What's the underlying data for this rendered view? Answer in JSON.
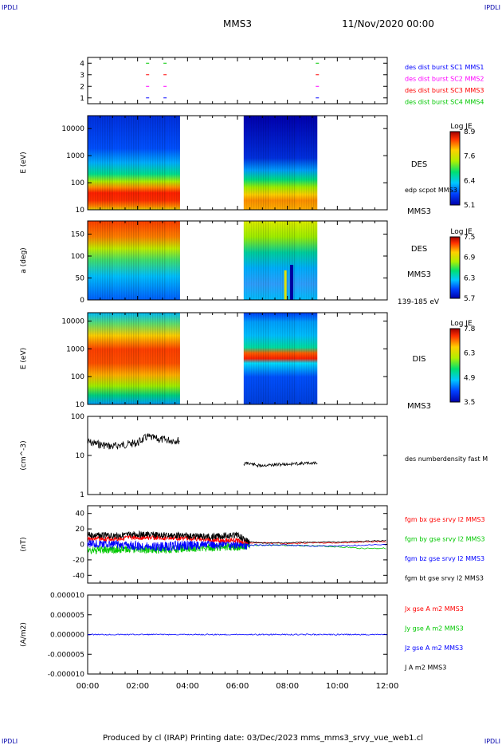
{
  "header": {
    "corner_tl": "IPDLI",
    "corner_tr": "IPDLI",
    "corner_bl": "IPDLI",
    "corner_br": "IPDLI",
    "spacecraft": "MMS3",
    "datetime": "11/Nov/2020 00:00"
  },
  "footer": {
    "text": "Produced by cl (IRAP)   Printing date: 03/Dec/2023   mms_mms3_srvy_vue_web1.cl"
  },
  "colors": {
    "black": "#000000",
    "red": "#ff0000",
    "green": "#00c800",
    "blue": "#0000ff",
    "magenta": "#ff00ff",
    "corner_blue": "#0000aa"
  },
  "chart_data": [
    {
      "type": "scatter",
      "panel": "burst-availability",
      "yticks": [
        "1",
        "2",
        "3",
        "4"
      ],
      "ylim": [
        0.5,
        4.5
      ],
      "legend": [
        {
          "name": "des dist burst SC1 MMS1",
          "color": "#0000ff"
        },
        {
          "name": "des dist burst SC2 MMS2",
          "color": "#ff00ff"
        },
        {
          "name": "des dist burst SC3 MMS3",
          "color": "#ff0000"
        },
        {
          "name": "des dist burst SC4 MMS4",
          "color": "#00c800"
        }
      ],
      "marks_hours": [
        2.4,
        3.1,
        9.2
      ]
    },
    {
      "type": "heatmap",
      "panel": "des-energy",
      "ylabel": "E (eV)",
      "yticks": [
        "10",
        "100",
        "1000",
        "10000"
      ],
      "ylog": true,
      "ylim": [
        10,
        30000
      ],
      "colorbar": {
        "title": "Log JE",
        "ticks": [
          "8.9",
          "7.6",
          "6.4",
          "5.1"
        ],
        "range": [
          5.1,
          8.9
        ]
      },
      "right_labels": [
        "DES",
        "edp scpot MMS3",
        "MMS3"
      ],
      "data_intervals_hours": [
        [
          0.0,
          3.7
        ],
        [
          6.25,
          9.2
        ]
      ]
    },
    {
      "type": "heatmap",
      "panel": "des-pitch-angle",
      "ylabel": "a (deg)",
      "yticks": [
        "0",
        "50",
        "100",
        "150"
      ],
      "ylim": [
        0,
        180
      ],
      "colorbar": {
        "title": "Log JE",
        "ticks": [
          "7.5",
          "6.9",
          "6.3",
          "5.7"
        ],
        "range": [
          5.7,
          7.5
        ]
      },
      "right_labels": [
        "DES",
        "MMS3",
        "139-185 eV"
      ],
      "data_intervals_hours": [
        [
          0.0,
          3.7
        ],
        [
          6.25,
          9.2
        ]
      ]
    },
    {
      "type": "heatmap",
      "panel": "dis-energy",
      "ylabel": "E (eV)",
      "yticks": [
        "10",
        "100",
        "1000",
        "10000"
      ],
      "ylog": true,
      "ylim": [
        10,
        20000
      ],
      "colorbar": {
        "title": "Log JE",
        "ticks": [
          "7.8",
          "6.3",
          "4.9",
          "3.5"
        ],
        "range": [
          3.5,
          7.8
        ]
      },
      "right_labels": [
        "DIS",
        "MMS3"
      ],
      "data_intervals_hours": [
        [
          0.0,
          3.7
        ],
        [
          6.25,
          9.2
        ]
      ]
    },
    {
      "type": "line",
      "panel": "density",
      "ylabel": "(cm^-3)",
      "yticks": [
        "1",
        "10",
        "100"
      ],
      "ylog": true,
      "ylim": [
        1,
        100
      ],
      "series": [
        {
          "name": "des numberdensity fast M",
          "color": "#000000",
          "x": [
            0.0,
            0.5,
            1.0,
            1.5,
            2.0,
            2.4,
            2.8,
            3.2,
            3.7,
            6.25,
            6.4,
            6.8,
            7.5,
            8.5,
            9.2
          ],
          "y": [
            22,
            19,
            17,
            19,
            21,
            30,
            26,
            25,
            24,
            6,
            6.5,
            5.5,
            5.8,
            6.2,
            6.5
          ]
        }
      ]
    },
    {
      "type": "line",
      "panel": "magnetic-field",
      "ylabel": "(nT)",
      "yticks": [
        "-40",
        "-20",
        "0",
        "20",
        "40"
      ],
      "ylim": [
        -50,
        50
      ],
      "series": [
        {
          "name": "fgm bx gse srvy l2 MMS3",
          "color": "#ff0000",
          "x": [
            0,
            1,
            2,
            3,
            4,
            5,
            6,
            6.5,
            7,
            8,
            9,
            10,
            11,
            12
          ],
          "y": [
            8,
            7,
            9,
            8,
            8,
            6,
            5,
            2,
            2,
            1,
            2,
            2,
            3,
            4
          ]
        },
        {
          "name": "fgm by gse srvy l2 MMS3",
          "color": "#00c800",
          "x": [
            0,
            1,
            2,
            3,
            4,
            5,
            6,
            6.5,
            7,
            8,
            9,
            10,
            11,
            12
          ],
          "y": [
            -8,
            -7,
            -6,
            -7,
            -5,
            -4,
            -3,
            -1,
            -1,
            -1,
            -2,
            -3,
            -5,
            -5
          ]
        },
        {
          "name": "fgm bz gse srvy l2 MMS3",
          "color": "#0000ff",
          "x": [
            0,
            1,
            2,
            3,
            4,
            5,
            6,
            6.5,
            7,
            8,
            9,
            10,
            11,
            12
          ],
          "y": [
            2,
            0,
            -2,
            -3,
            -1,
            0,
            0,
            -1,
            -1,
            -1,
            -2,
            -2,
            -1,
            0
          ]
        },
        {
          "name": "fgm bt gse srvy l2 MMS3",
          "color": "#000000",
          "x": [
            0,
            1,
            2,
            3,
            4,
            5,
            6,
            6.5,
            7,
            8,
            9,
            10,
            11,
            12
          ],
          "y": [
            12,
            11,
            13,
            12,
            11,
            10,
            12,
            3,
            2,
            2,
            3,
            3,
            4,
            5
          ]
        }
      ]
    },
    {
      "type": "line",
      "panel": "current-density",
      "ylabel": "(A/m2)",
      "yticks": [
        "-0.000010",
        "-0.000005",
        "0.000000",
        "0.000005",
        "0.000010"
      ],
      "ylim": [
        -1e-05,
        1e-05
      ],
      "series": [
        {
          "name": "Jx gse A m2 MMS3",
          "color": "#ff0000"
        },
        {
          "name": "Jy gse A m2 MMS3",
          "color": "#00c800"
        },
        {
          "name": "Jz gse A m2 MMS3",
          "color": "#0000ff"
        },
        {
          "name": "J A m2 MMS3",
          "color": "#000000"
        }
      ]
    }
  ],
  "time_axis": {
    "ticks": [
      "00:00",
      "02:00",
      "04:00",
      "06:00",
      "08:00",
      "10:00",
      "12:00"
    ],
    "range_hours": [
      0,
      12
    ]
  }
}
